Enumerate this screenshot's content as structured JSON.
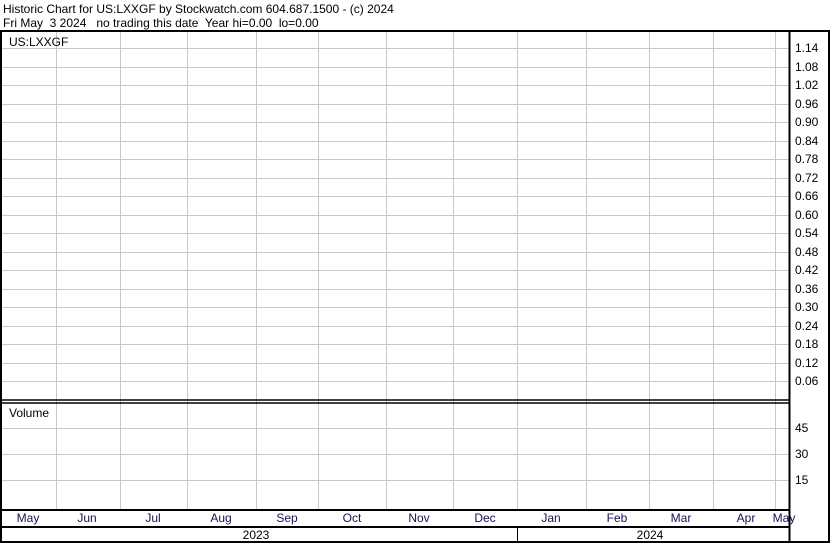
{
  "header": {
    "line1": "Historic Chart for US:LXXGF by Stockwatch.com 604.687.1500 - (c) 2024",
    "line2": "Fri May  3 2024   no trading this date  Year hi=0.00  lo=0.00"
  },
  "chart_data": {
    "type": "line",
    "symbol_label": "US:LXXGF",
    "price_axis": {
      "ticks": [
        "1.14",
        "1.08",
        "1.02",
        "0.96",
        "0.90",
        "0.84",
        "0.78",
        "0.72",
        "0.66",
        "0.60",
        "0.54",
        "0.48",
        "0.42",
        "0.36",
        "0.30",
        "0.24",
        "0.18",
        "0.12",
        "0.06"
      ],
      "position": "right"
    },
    "volume_panel": {
      "label": "Volume",
      "ticks": [
        "45",
        "30",
        "15"
      ]
    },
    "x_axis": {
      "months": [
        "May",
        "Jun",
        "Jul",
        "Aug",
        "Sep",
        "Oct",
        "Nov",
        "Dec",
        "Jan",
        "Feb",
        "Mar",
        "Apr",
        "May"
      ],
      "years": [
        "2023",
        "2024"
      ]
    },
    "series": [],
    "grid": true,
    "colors": {
      "grid": "#c8c8c8",
      "border": "#000000",
      "month_text": "#1a1050"
    }
  }
}
